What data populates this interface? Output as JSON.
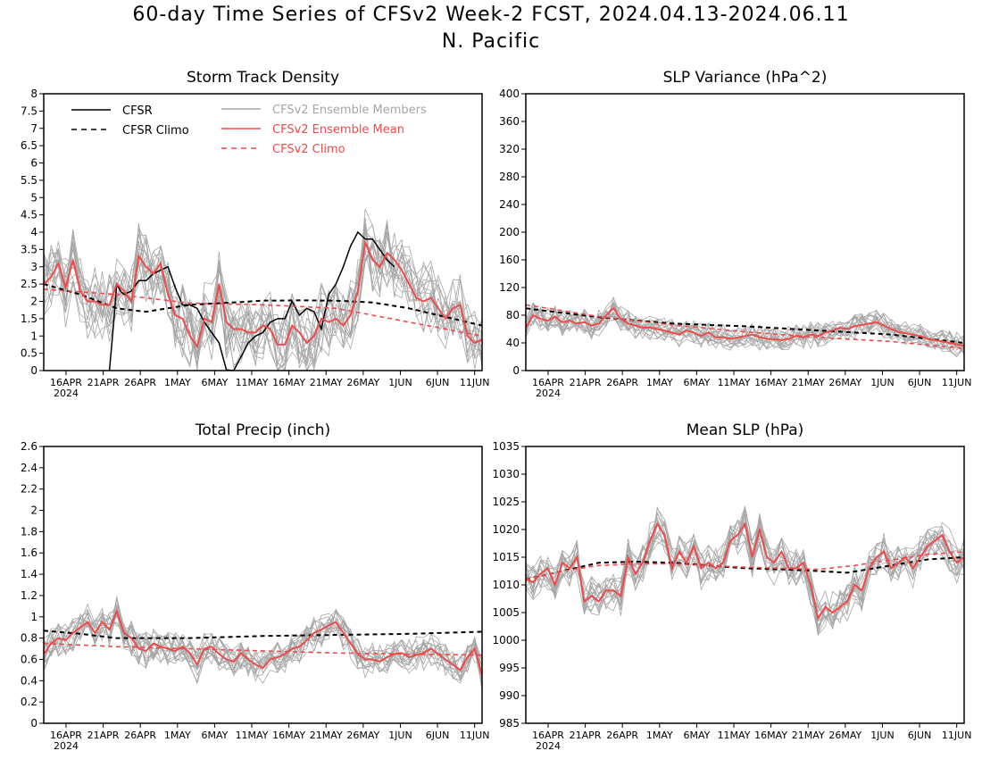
{
  "page": {
    "title": "60-day Time Series of CFSv2 Week-2 FCST, 2024.04.13-2024.06.11",
    "subtitle": "N. Pacific"
  },
  "colors": {
    "cfsr": "#000000",
    "ens_member": "#a6a6a6",
    "ens_mean": "#f04a4a",
    "cfsv2_climo": "#f04a4a",
    "axis": "#000000"
  },
  "legend": {
    "cfsr": "CFSR",
    "cfsr_climo": "CFSR Climo",
    "members": "CFSv2 Ensemble Members",
    "mean": "CFSv2 Ensemble Mean",
    "cfsv2_climo": "CFSv2 Climo"
  },
  "x_ticks": [
    "16APR",
    "21APR",
    "26APR",
    "1MAY",
    "6MAY",
    "11MAY",
    "16MAY",
    "21MAY",
    "26MAY",
    "1JUN",
    "6JUN",
    "11JUN"
  ],
  "x_year": "2024",
  "chart_data": [
    {
      "type": "line",
      "title": "Storm Track Density",
      "x_range": [
        "2024-04-13",
        "2024-06-11"
      ],
      "ylim": [
        0,
        8
      ],
      "yticks": [
        "0",
        "0.5",
        "1",
        "1.5",
        "2",
        "2.5",
        "3",
        "3.5",
        "4",
        "4.5",
        "5",
        "5.5",
        "6",
        "6.5",
        "7",
        "7.5",
        "8"
      ],
      "series": [
        {
          "name": "CFSR",
          "points": [
            [
              9,
              0
            ],
            [
              9.5,
              1.2
            ],
            [
              10,
              2.5
            ],
            [
              10.5,
              2.3
            ],
            [
              11,
              2.2
            ],
            [
              12,
              2.3
            ],
            [
              13,
              2.6
            ],
            [
              14,
              2.6
            ],
            [
              15,
              2.8
            ],
            [
              16,
              2.9
            ],
            [
              17,
              3.0
            ],
            [
              18,
              2.4
            ],
            [
              19,
              1.9
            ],
            [
              20,
              1.9
            ],
            [
              21,
              1.8
            ],
            [
              22,
              1.4
            ],
            [
              23,
              1.1
            ],
            [
              24,
              0.8
            ],
            [
              25,
              0.02
            ],
            [
              26,
              0.0
            ],
            [
              27,
              0.4
            ],
            [
              28,
              0.8
            ],
            [
              29,
              1.0
            ],
            [
              30,
              1.1
            ],
            [
              31,
              1.4
            ],
            [
              32,
              1.5
            ],
            [
              33,
              1.5
            ],
            [
              34,
              2.0
            ],
            [
              35,
              1.6
            ],
            [
              36,
              1.8
            ],
            [
              37,
              1.7
            ],
            [
              38,
              1.2
            ],
            [
              39,
              2.2
            ],
            [
              40,
              2.5
            ],
            [
              41,
              3.0
            ],
            [
              42,
              3.6
            ],
            [
              43,
              4.0
            ],
            [
              44,
              3.8
            ],
            [
              45,
              3.8
            ],
            [
              46,
              3.5
            ],
            [
              47,
              3.2
            ],
            [
              48,
              3.0
            ]
          ]
        },
        {
          "name": "CFSR Climo",
          "points": [
            [
              0,
              2.5
            ],
            [
              5,
              2.2
            ],
            [
              10,
              1.8
            ],
            [
              14,
              1.7
            ],
            [
              20,
              1.9
            ],
            [
              26,
              1.97
            ],
            [
              30,
              2.02
            ],
            [
              35,
              2.03
            ],
            [
              40,
              2.02
            ],
            [
              45,
              1.97
            ],
            [
              50,
              1.8
            ],
            [
              55,
              1.55
            ],
            [
              60,
              1.3
            ]
          ]
        },
        {
          "name": "CFSv2 Ensemble Mean",
          "values": [
            2.5,
            2.7,
            3.1,
            2.4,
            3.2,
            2.3,
            2.0,
            2.0,
            1.9,
            1.9,
            2.5,
            2.3,
            2.0,
            3.3,
            3.0,
            2.8,
            3.1,
            2.2,
            1.6,
            1.5,
            1.0,
            0.7,
            1.5,
            1.4,
            2.5,
            1.4,
            1.2,
            1.2,
            1.1,
            1.1,
            1.3,
            1.2,
            0.75,
            0.75,
            1.3,
            1.1,
            0.8,
            1.0,
            1.5,
            1.4,
            1.5,
            1.3,
            1.6,
            2.3,
            3.7,
            3.2,
            3.0,
            3.4,
            3.2,
            2.9,
            2.5,
            2.1,
            2.0,
            2.1,
            1.8,
            1.5,
            1.8,
            1.9,
            1.0,
            0.8,
            0.9
          ]
        },
        {
          "name": "CFSv2 Climo",
          "points": [
            [
              0,
              2.35
            ],
            [
              10,
              2.2
            ],
            [
              20,
              1.95
            ],
            [
              30,
              1.9
            ],
            [
              40,
              1.8
            ],
            [
              50,
              1.4
            ],
            [
              60,
              1.0
            ]
          ]
        }
      ]
    },
    {
      "type": "line",
      "title": "SLP Variance (hPa^2)",
      "x_range": [
        "2024-04-13",
        "2024-06-11"
      ],
      "ylim": [
        0,
        400
      ],
      "yticks": [
        "0",
        "40",
        "80",
        "120",
        "160",
        "200",
        "240",
        "280",
        "320",
        "360",
        "400"
      ],
      "series": [
        {
          "name": "CFSR Climo",
          "points": [
            [
              0,
              90
            ],
            [
              10,
              77
            ],
            [
              20,
              68
            ],
            [
              30,
              64
            ],
            [
              40,
              58
            ],
            [
              50,
              52
            ],
            [
              60,
              40
            ]
          ]
        },
        {
          "name": "CFSv2 Ensemble Mean",
          "values": [
            62,
            80,
            75,
            72,
            78,
            70,
            72,
            68,
            70,
            65,
            68,
            80,
            90,
            75,
            68,
            65,
            62,
            62,
            60,
            58,
            55,
            52,
            58,
            55,
            50,
            55,
            48,
            48,
            46,
            48,
            50,
            52,
            48,
            46,
            45,
            44,
            46,
            50,
            48,
            52,
            50,
            55,
            58,
            62,
            60,
            64,
            66,
            68,
            70,
            65,
            60,
            56,
            54,
            52,
            50,
            46,
            44,
            42,
            40,
            38,
            36
          ]
        },
        {
          "name": "CFSv2 Climo",
          "points": [
            [
              0,
              95
            ],
            [
              10,
              78
            ],
            [
              20,
              66
            ],
            [
              30,
              56
            ],
            [
              40,
              48
            ],
            [
              50,
              42
            ],
            [
              60,
              32
            ]
          ]
        }
      ]
    },
    {
      "type": "line",
      "title": "Total Precip (inch)",
      "x_range": [
        "2024-04-13",
        "2024-06-11"
      ],
      "ylim": [
        0,
        2.6
      ],
      "yticks": [
        "0",
        "0.2",
        "0.4",
        "0.6",
        "0.8",
        "1",
        "1.2",
        "1.4",
        "1.6",
        "1.8",
        "2",
        "2.2",
        "2.4",
        "2.6"
      ],
      "series": [
        {
          "name": "CFSR Climo",
          "points": [
            [
              0,
              0.87
            ],
            [
              5,
              0.84
            ],
            [
              10,
              0.8
            ],
            [
              20,
              0.8
            ],
            [
              30,
              0.82
            ],
            [
              40,
              0.83
            ],
            [
              50,
              0.84
            ],
            [
              55,
              0.85
            ],
            [
              60,
              0.86
            ]
          ]
        },
        {
          "name": "CFSv2 Ensemble Mean",
          "values": [
            0.65,
            0.75,
            0.8,
            0.78,
            0.85,
            0.9,
            0.95,
            0.85,
            0.95,
            0.88,
            1.05,
            0.85,
            0.8,
            0.7,
            0.68,
            0.75,
            0.72,
            0.7,
            0.68,
            0.72,
            0.66,
            0.55,
            0.7,
            0.72,
            0.65,
            0.6,
            0.58,
            0.66,
            0.6,
            0.55,
            0.52,
            0.6,
            0.62,
            0.65,
            0.7,
            0.72,
            0.78,
            0.85,
            0.88,
            0.92,
            0.95,
            0.85,
            0.75,
            0.65,
            0.6,
            0.6,
            0.58,
            0.62,
            0.65,
            0.66,
            0.62,
            0.64,
            0.66,
            0.7,
            0.65,
            0.6,
            0.55,
            0.5,
            0.62,
            0.7,
            0.45
          ]
        },
        {
          "name": "CFSv2 Climo",
          "points": [
            [
              0,
              0.75
            ],
            [
              10,
              0.72
            ],
            [
              20,
              0.7
            ],
            [
              30,
              0.68
            ],
            [
              40,
              0.66
            ],
            [
              50,
              0.65
            ],
            [
              60,
              0.64
            ]
          ]
        }
      ]
    },
    {
      "type": "line",
      "title": "Mean SLP (hPa)",
      "x_range": [
        "2024-04-13",
        "2024-06-11"
      ],
      "ylim": [
        985,
        1035
      ],
      "yticks": [
        "985",
        "990",
        "995",
        "1000",
        "1005",
        "1010",
        "1015",
        "1020",
        "1025",
        "1030",
        "1035"
      ],
      "series": [
        {
          "name": "CFSR Climo",
          "points": [
            [
              0,
              1011
            ],
            [
              5,
              1012.5
            ],
            [
              10,
              1014
            ],
            [
              15,
              1014.2
            ],
            [
              20,
              1014
            ],
            [
              25,
              1013.5
            ],
            [
              30,
              1013
            ],
            [
              35,
              1012.8
            ],
            [
              40,
              1012.5
            ],
            [
              44,
              1012.2
            ],
            [
              50,
              1013.5
            ],
            [
              55,
              1014.6
            ],
            [
              60,
              1015
            ]
          ]
        },
        {
          "name": "CFSv2 Ensemble Mean",
          "values": [
            1011,
            1010.5,
            1012,
            1013,
            1010,
            1014,
            1013,
            1015,
            1007,
            1008,
            1007,
            1009,
            1009,
            1008,
            1015,
            1012,
            1014,
            1018,
            1021,
            1019,
            1013,
            1016,
            1014,
            1017,
            1013,
            1014,
            1013,
            1014,
            1018,
            1019,
            1021,
            1015,
            1020,
            1015,
            1014,
            1016,
            1013,
            1013,
            1014,
            1010,
            1004,
            1006,
            1005,
            1006,
            1007,
            1010,
            1009,
            1013,
            1015,
            1016,
            1013,
            1014,
            1015,
            1013,
            1015,
            1017,
            1018,
            1019,
            1016,
            1014,
            1015
          ]
        },
        {
          "name": "CFSv2 Climo",
          "points": [
            [
              0,
              1011
            ],
            [
              5,
              1012.5
            ],
            [
              10,
              1013.5
            ],
            [
              15,
              1013.8
            ],
            [
              20,
              1013.8
            ],
            [
              25,
              1013.5
            ],
            [
              30,
              1013.2
            ],
            [
              35,
              1013.0
            ],
            [
              40,
              1012.8
            ],
            [
              45,
              1013.5
            ],
            [
              50,
              1014.5
            ],
            [
              55,
              1015.5
            ],
            [
              60,
              1016
            ]
          ]
        }
      ]
    }
  ]
}
